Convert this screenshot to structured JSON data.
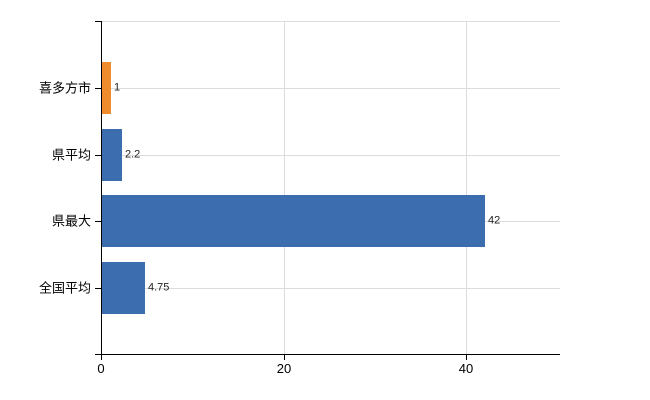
{
  "chart_data": {
    "type": "bar",
    "orientation": "horizontal",
    "title": "",
    "xlabel": "",
    "ylabel": "",
    "categories": [
      "喜多方市",
      "県平均",
      "県最大",
      "全国平均"
    ],
    "values": [
      1,
      2.2,
      42,
      4.75
    ],
    "value_labels": [
      "1",
      "2.2",
      "42",
      "4.75"
    ],
    "bar_colors": [
      "#ee8c2e",
      "#3c6eaf",
      "#3c6eaf",
      "#3c6eaf"
    ],
    "x_ticks": [
      0,
      20,
      40
    ],
    "x_tick_labels": [
      "0",
      "20",
      "40"
    ],
    "xlim": [
      0,
      50.3
    ],
    "grid": true,
    "legend": "none",
    "colors": {
      "bar_default": "#3c6eaf",
      "bar_highlight": "#ee8c2e",
      "gridline": "#dcdcdc",
      "axis": "#000000",
      "background": "#ffffff",
      "label_text": "#000000",
      "value_text": "#222222"
    }
  }
}
